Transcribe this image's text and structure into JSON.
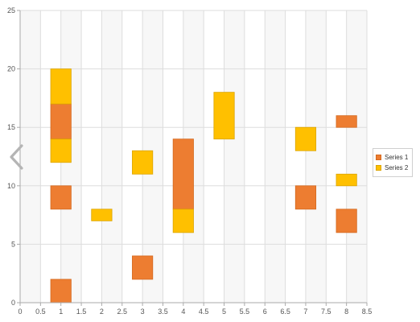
{
  "chart_data": {
    "type": "range-bar",
    "title": "",
    "xlabel": "",
    "ylabel": "",
    "xlim": [
      0,
      8.5
    ],
    "ylim": [
      0,
      25
    ],
    "x_ticks": [
      "0",
      "0.5",
      "1",
      "1.5",
      "2",
      "2.5",
      "3",
      "3.5",
      "4",
      "4.5",
      "5",
      "5.5",
      "6",
      "6.5",
      "7",
      "7.5",
      "8",
      "8.5"
    ],
    "y_ticks": [
      "0",
      "5",
      "10",
      "15",
      "20",
      "25"
    ],
    "bar_width": 0.5,
    "grid": true,
    "legend_position": "right",
    "series": [
      {
        "name": "Series 1",
        "color": "#ed7d31",
        "stroke": "#d4691f",
        "ranges": [
          {
            "x": 1,
            "low": 0,
            "high": 2
          },
          {
            "x": 1,
            "low": 8,
            "high": 10
          },
          {
            "x": 1,
            "low": 14,
            "high": 17
          },
          {
            "x": 3,
            "low": 2,
            "high": 4
          },
          {
            "x": 4,
            "low": 8,
            "high": 14
          },
          {
            "x": 7,
            "low": 8,
            "high": 10
          },
          {
            "x": 8,
            "low": 6,
            "high": 8
          },
          {
            "x": 8,
            "low": 15,
            "high": 16
          }
        ]
      },
      {
        "name": "Series 2",
        "color": "#ffc000",
        "stroke": "#dba400",
        "ranges": [
          {
            "x": 1,
            "low": 12,
            "high": 14
          },
          {
            "x": 1,
            "low": 17,
            "high": 20
          },
          {
            "x": 2,
            "low": 7,
            "high": 8
          },
          {
            "x": 3,
            "low": 11,
            "high": 13
          },
          {
            "x": 4,
            "low": 6,
            "high": 8
          },
          {
            "x": 5,
            "low": 14,
            "high": 18
          },
          {
            "x": 7,
            "low": 13,
            "high": 15
          },
          {
            "x": 8,
            "low": 10,
            "high": 11
          }
        ]
      }
    ]
  },
  "colors": {
    "band_alt": "#f7f7f7",
    "grid": "#dddddd",
    "axis": "#aaaaaa",
    "nav_arrow": "#b5b5b5"
  },
  "icons": {
    "nav": "chevron-left-icon"
  }
}
